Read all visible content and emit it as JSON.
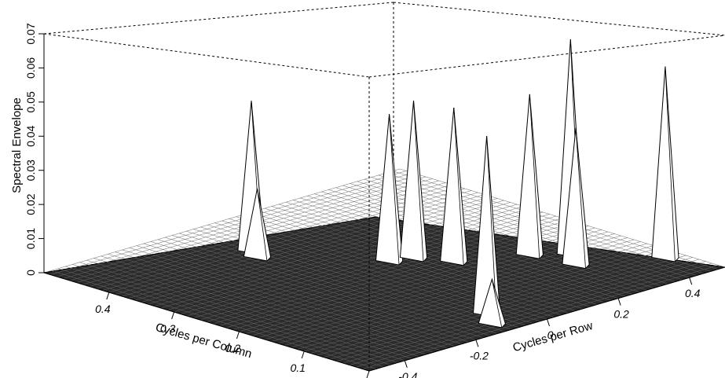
{
  "chart_data": {
    "type": "surface3d",
    "zlabel": "Spectral Envelope",
    "xlabel": "Cycles per Column",
    "ylabel": "Cycles per Row",
    "z_ticks": [
      "0",
      "0.01",
      "0.02",
      "0.03",
      "0.04",
      "0.05",
      "0.06",
      "0.07"
    ],
    "col_ticks": [
      "0.4",
      "0.3",
      "0.2",
      "0.1",
      "0"
    ],
    "row_ticks": [
      "-0.4",
      "-0.2",
      "0",
      "0.2",
      "0.4"
    ],
    "zlim": [
      0,
      0.07
    ],
    "col_range": [
      0,
      0.5
    ],
    "row_range": [
      -0.5,
      0.5
    ],
    "peaks": [
      {
        "col": 0.4,
        "row": -0.1,
        "z": 0.044
      },
      {
        "col": 0.38,
        "row": -0.12,
        "z": 0.02
      },
      {
        "col": 0.27,
        "row": 0.05,
        "z": 0.043
      },
      {
        "col": 0.26,
        "row": 0.1,
        "z": 0.046
      },
      {
        "col": 0.22,
        "row": 0.14,
        "z": 0.045
      },
      {
        "col": 0.18,
        "row": 0.28,
        "z": 0.047
      },
      {
        "col": 0.15,
        "row": 0.34,
        "z": 0.063
      },
      {
        "col": 0.12,
        "row": 0.3,
        "z": 0.04
      },
      {
        "col": 0.06,
        "row": -0.06,
        "z": 0.052
      },
      {
        "col": 0.03,
        "row": -0.1,
        "z": 0.013
      },
      {
        "col": 0.07,
        "row": 0.46,
        "z": 0.056
      }
    ]
  }
}
